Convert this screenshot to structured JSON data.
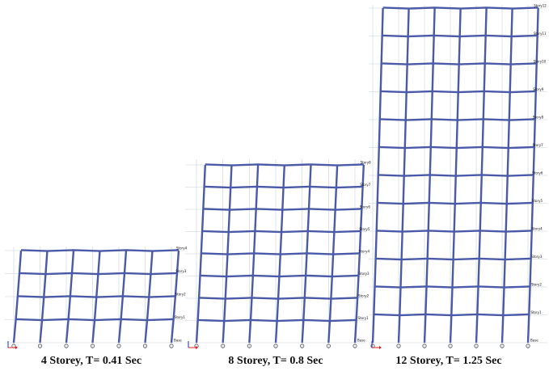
{
  "colors": {
    "frame": "#4a5aa8",
    "grid": "#c8d2dc",
    "axis_x": "#e02020",
    "axis_z": "#2030c0",
    "caption": "#111111"
  },
  "models": [
    {
      "id": "model-4",
      "caption": "4 Storey, T= 0.41 Sec",
      "storeys": 4,
      "bays": 6,
      "storey_labels": [
        "Story4",
        "Story3",
        "Story2",
        "Story1",
        "Base"
      ]
    },
    {
      "id": "model-8",
      "caption": "8 Storey, T= 0.8 Sec",
      "storeys": 8,
      "bays": 6,
      "storey_labels": [
        "Story8",
        "Story7",
        "Story6",
        "Story5",
        "Story4",
        "Story3",
        "Story2",
        "Story1",
        "Base"
      ]
    },
    {
      "id": "model-12",
      "caption": "12 Storey, T= 1.25 Sec",
      "storeys": 12,
      "bays": 6,
      "storey_labels": [
        "Story12",
        "Story11",
        "Story10",
        "Story9",
        "Story8",
        "Story7",
        "Story6",
        "Story5",
        "Story4",
        "Story3",
        "Story2",
        "Story1",
        "Base"
      ]
    }
  ]
}
